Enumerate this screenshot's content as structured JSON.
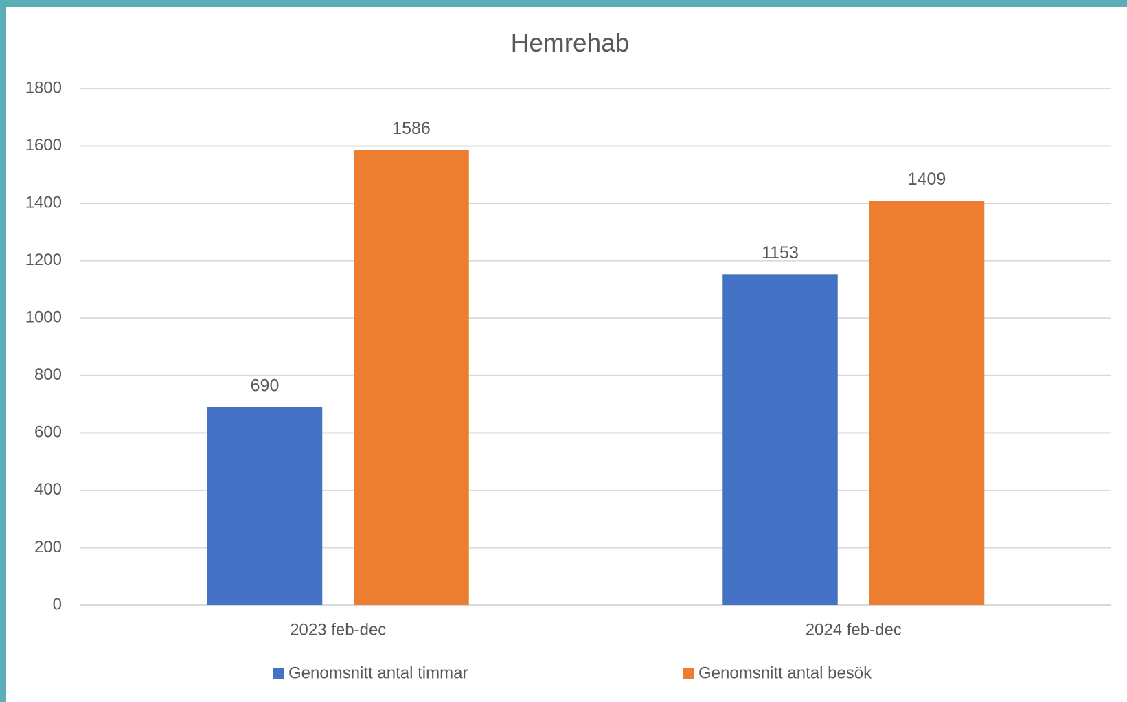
{
  "chart_data": {
    "type": "bar",
    "title": "Hemrehab",
    "categories": [
      "2023 feb-dec",
      "2024 feb-dec"
    ],
    "series": [
      {
        "name": "Genomsnitt antal timmar",
        "color": "#4472c4",
        "values": [
          690,
          1153
        ]
      },
      {
        "name": "Genomsnitt antal besök",
        "color": "#ed7d31",
        "values": [
          1586,
          1409
        ]
      }
    ],
    "ylim": [
      0,
      1800
    ],
    "yticks": [
      0,
      200,
      400,
      600,
      800,
      1000,
      1200,
      1400,
      1600,
      1800
    ],
    "grid": true,
    "legend": "bottom"
  }
}
